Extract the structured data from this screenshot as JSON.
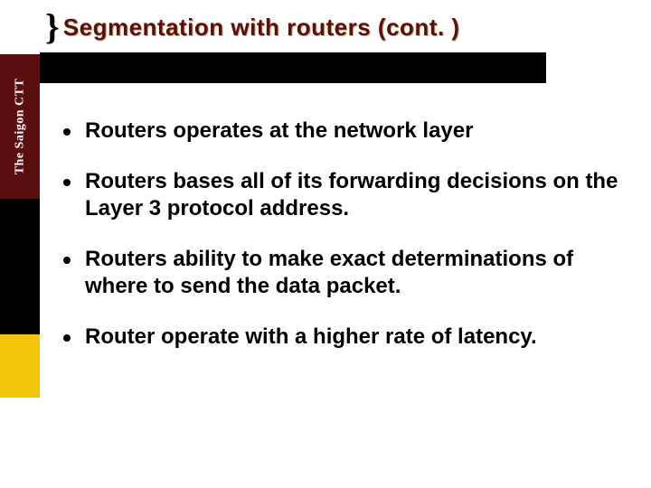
{
  "sidebar": {
    "label": "The Saigon CTT",
    "colors": {
      "seg1": "#ffffff",
      "seg2": "#5a0e0e",
      "seg3": "#000000",
      "seg4": "#f1c40a",
      "seg5": "#ffffff",
      "label_text": "#ffffff"
    }
  },
  "title": {
    "brace": "}",
    "text": "Segmentation with routers (cont. )",
    "text_color": "#5a0e0e",
    "shadow_color": "#c9b070",
    "bar_color": "#000000"
  },
  "bullets": [
    {
      "text": "Routers operates at the network layer"
    },
    {
      "text": "Routers bases all of its forwarding decisions on the Layer 3 protocol address."
    },
    {
      "text": "Routers ability to make exact determinations of where to send the data packet."
    },
    {
      "text": "Router operate with a higher rate of latency."
    }
  ],
  "body": {
    "background": "#ffffff",
    "bullet_color": "#000000",
    "text_color": "#000000",
    "font_size_pt": 18
  }
}
